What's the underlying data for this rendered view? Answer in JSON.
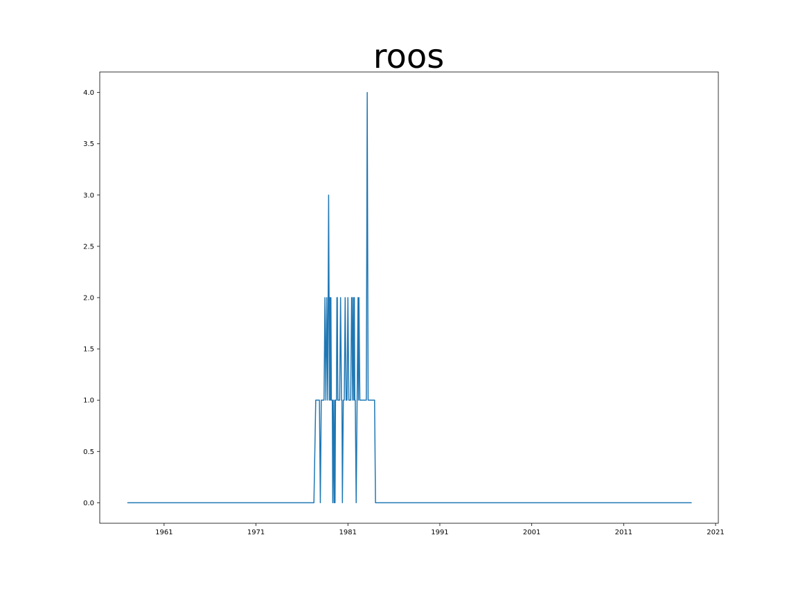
{
  "chart_data": {
    "type": "line",
    "title": "roos",
    "xlabel": "",
    "ylabel": "",
    "xlim": [
      1954.0,
      2021.3
    ],
    "ylim": [
      -0.2,
      4.2
    ],
    "x_ticks": [
      1961,
      1971,
      1981,
      1991,
      2001,
      2011,
      2021
    ],
    "x_tick_labels": [
      "1961",
      "1971",
      "1981",
      "1991",
      "2001",
      "2011",
      "2021"
    ],
    "y_ticks": [
      0.0,
      0.5,
      1.0,
      1.5,
      2.0,
      2.5,
      3.0,
      3.5,
      4.0
    ],
    "y_tick_labels": [
      "0.0",
      "0.5",
      "1.0",
      "1.5",
      "2.0",
      "2.5",
      "3.0",
      "3.5",
      "4.0"
    ],
    "grid": false,
    "series": [
      {
        "color": "#1f77b4",
        "x": [
          1957.0,
          1977.3,
          1977.5,
          1977.9,
          1978.0,
          1978.1,
          1978.4,
          1978.5,
          1978.6,
          1978.7,
          1978.8,
          1978.9,
          1979.0,
          1979.05,
          1979.1,
          1979.15,
          1979.2,
          1979.3,
          1979.35,
          1979.4,
          1979.5,
          1979.55,
          1979.6,
          1979.65,
          1979.7,
          1979.75,
          1979.8,
          1979.85,
          1979.9,
          1980.0,
          1980.1,
          1980.2,
          1980.3,
          1980.35,
          1980.4,
          1980.5,
          1980.55,
          1980.6,
          1980.7,
          1980.8,
          1980.9,
          1981.0,
          1981.1,
          1981.2,
          1981.3,
          1981.4,
          1981.45,
          1981.5,
          1981.6,
          1981.65,
          1981.7,
          1981.75,
          1981.8,
          1981.9,
          1982.0,
          1982.1,
          1982.15,
          1982.2,
          1982.3,
          1982.4,
          1982.45,
          1982.5,
          1982.55,
          1982.6,
          1982.7,
          1982.8,
          1982.9,
          1983.0,
          1983.1,
          1983.2,
          1983.3,
          1983.4,
          1983.5,
          1983.6,
          1983.7,
          1983.8,
          1983.9,
          1984.0,
          1984.1,
          1984.2,
          1984.3,
          1984.5,
          1984.6,
          1984.7,
          1984.8,
          1984.9,
          1985.0,
          1985.1,
          1985.2,
          1985.3,
          1985.4,
          1985.5,
          1985.6,
          1985.7,
          1985.8,
          1985.9,
          1986.0,
          1986.1,
          1986.2,
          1986.3,
          1986.4,
          1986.5,
          1986.6,
          1986.7,
          1986.8,
          1986.9,
          1987.0,
          1987.1,
          1987.2,
          1987.3,
          1987.4,
          1987.5,
          1987.6,
          1987.7,
          1987.8,
          1987.9,
          1988.0,
          1988.1,
          1988.2,
          1988.3,
          2018.4
        ],
        "values": [
          0,
          0,
          1,
          1,
          0,
          1,
          1,
          2,
          1,
          2,
          1,
          3,
          1,
          2,
          1,
          2,
          1,
          1,
          0,
          1,
          0,
          1,
          0,
          1,
          1,
          1,
          2,
          2,
          1,
          1,
          1,
          2,
          1,
          1,
          0,
          1,
          1,
          1,
          2,
          1,
          1,
          2,
          1,
          1,
          1,
          2,
          2,
          1,
          2,
          1,
          2,
          1,
          1,
          0,
          1,
          2,
          1,
          2,
          1,
          1,
          1,
          1,
          1,
          1,
          1,
          1,
          1,
          1,
          4,
          1,
          1,
          1,
          1,
          1,
          1,
          1,
          1,
          0,
          0,
          0,
          0,
          0,
          0,
          0,
          0,
          0,
          0,
          0,
          0,
          0,
          0,
          0,
          0,
          0,
          0,
          0,
          0,
          0,
          0,
          0,
          0,
          0,
          0,
          0,
          0,
          0,
          0,
          0,
          0,
          0,
          0,
          0,
          0,
          0,
          0,
          0,
          0,
          0,
          0,
          0,
          0
        ]
      }
    ]
  }
}
